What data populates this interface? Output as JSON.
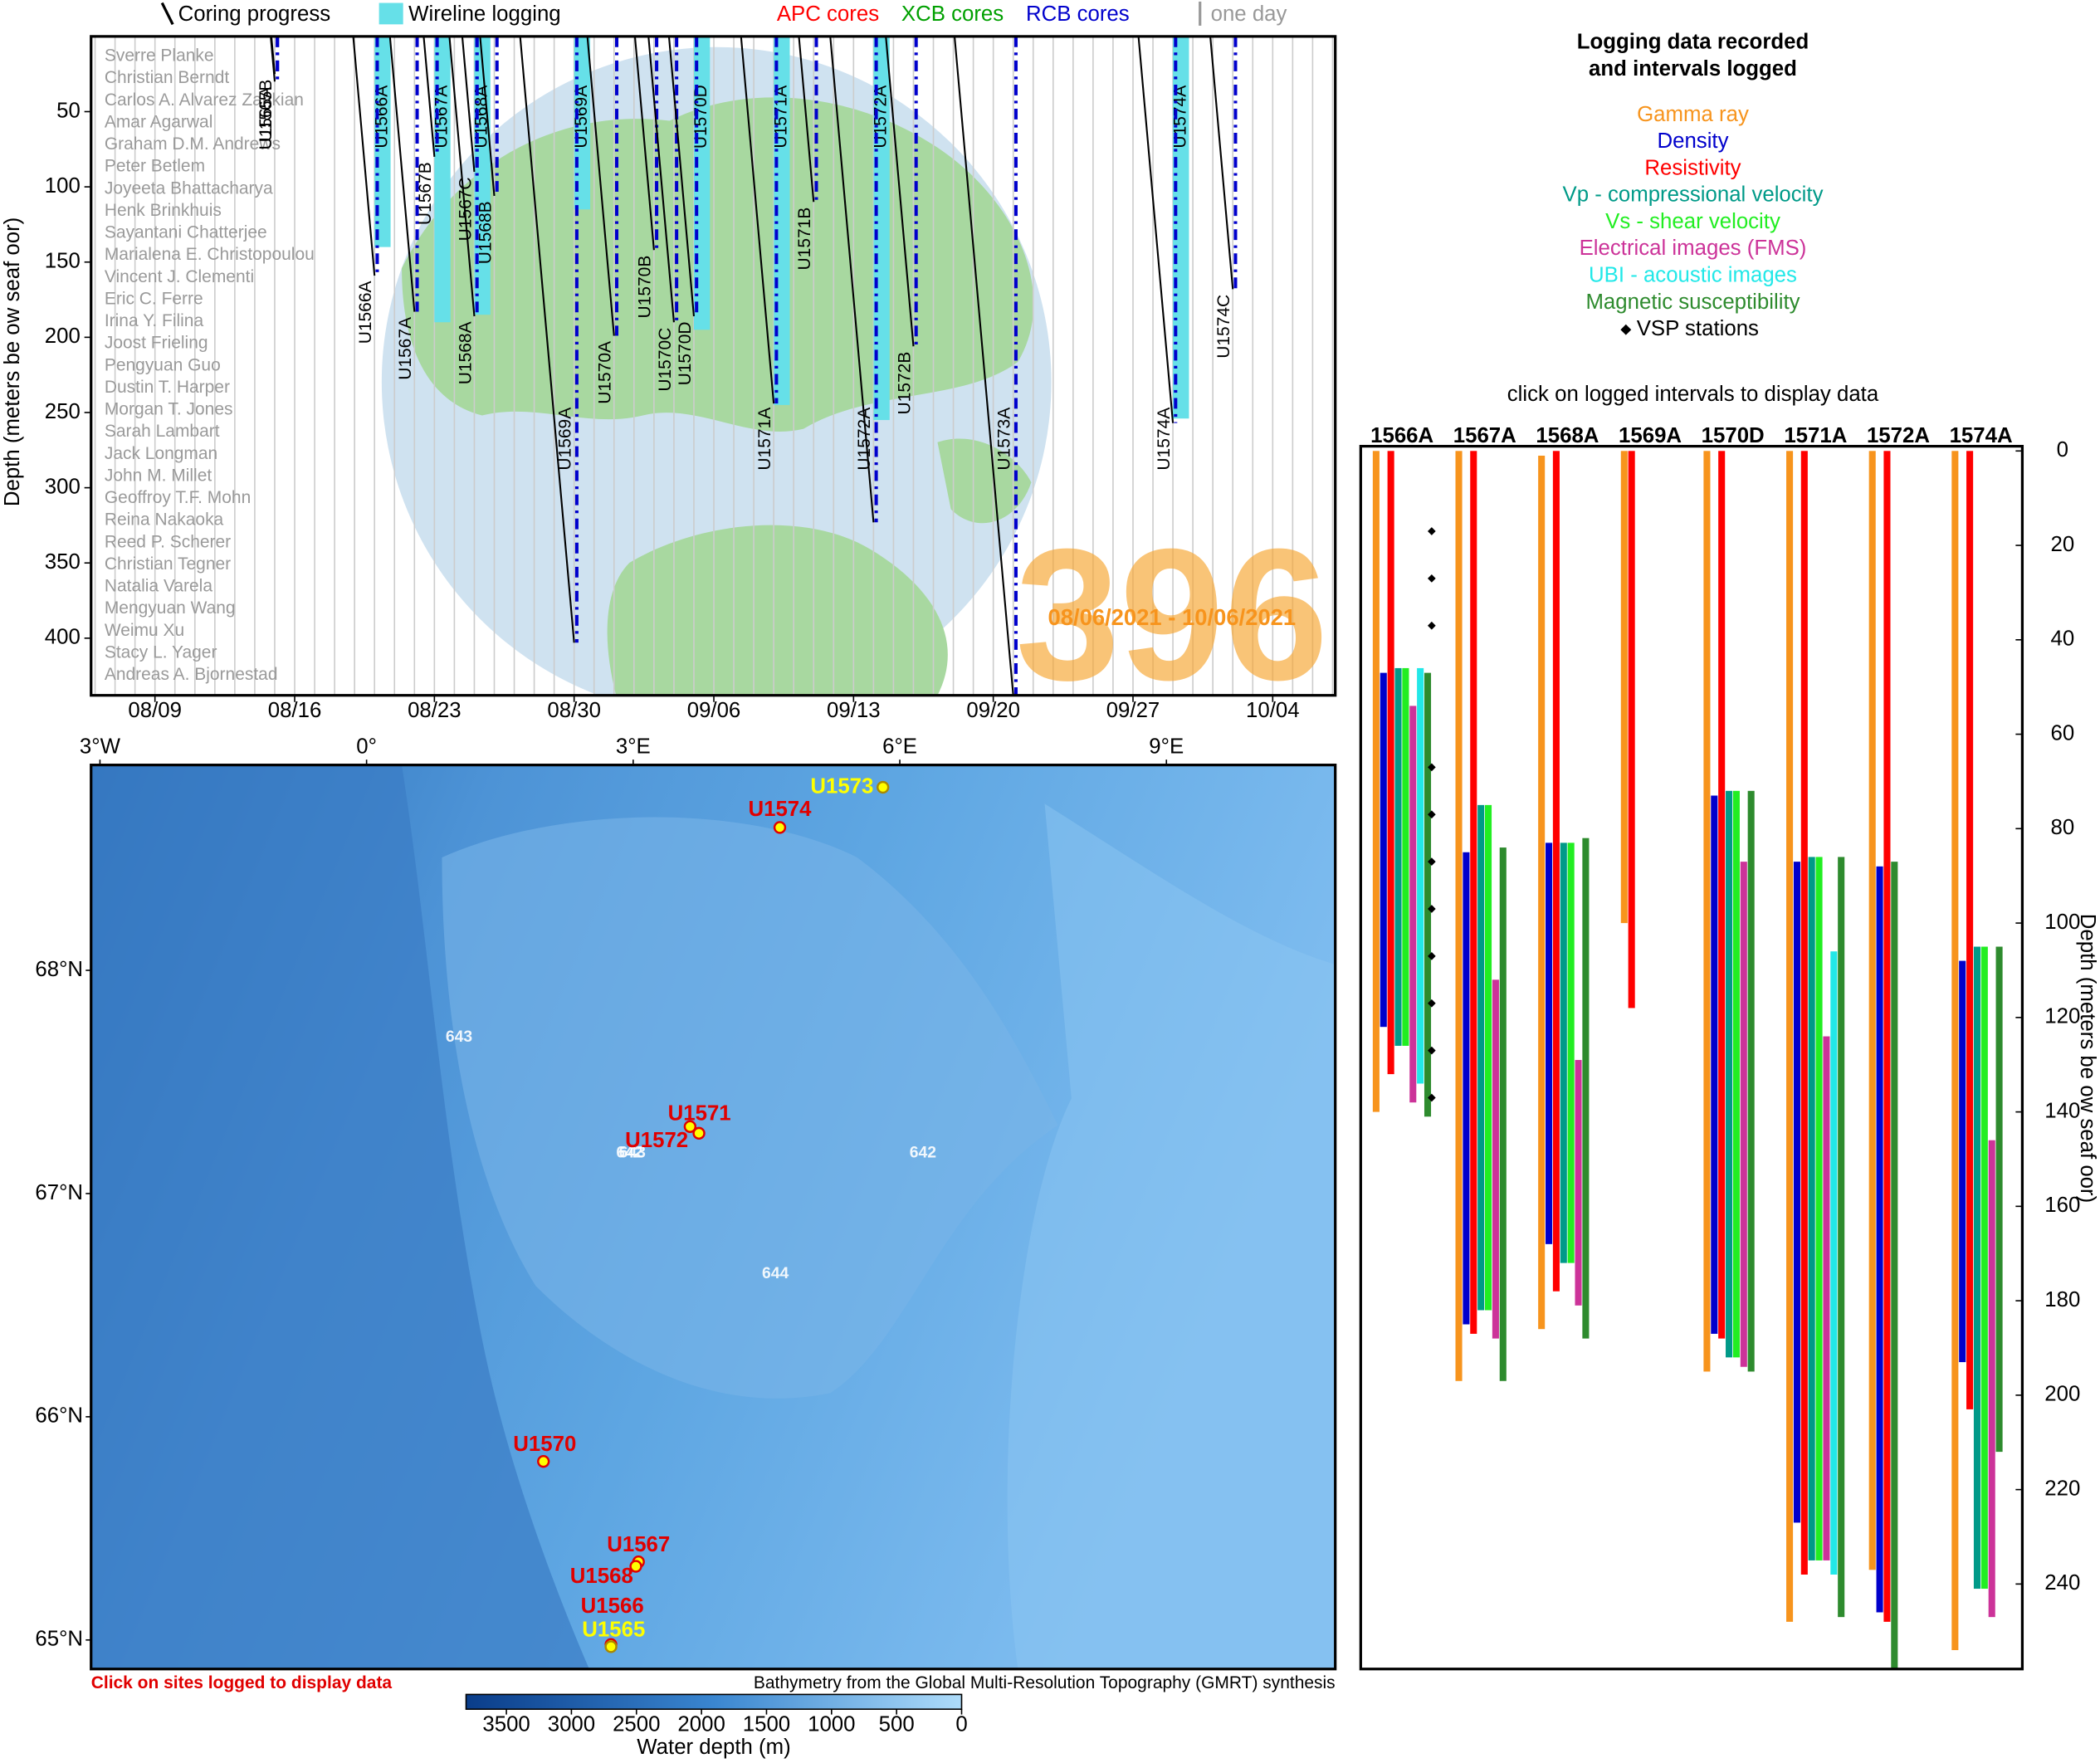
{
  "chart_data": [
    {
      "type": "timeline",
      "legend": [
        "Coring progress",
        "Wireline logging",
        "APC cores",
        "XCB cores",
        "RCB cores",
        "one day"
      ],
      "legend_colors": [
        "#000000",
        "#66e0e8",
        "#ff0000",
        "#00a000",
        "#0000cc",
        "#999999"
      ],
      "ylabel": "Depth (meters be ow seaf oor)",
      "xlim": [
        "08/06",
        "10/07"
      ],
      "xticks": [
        "08/09",
        "08/16",
        "08/23",
        "08/30",
        "09/06",
        "09/13",
        "09/20",
        "09/27",
        "10/04"
      ],
      "ylim": [
        0,
        438
      ],
      "yticks": [
        50,
        100,
        150,
        200,
        250,
        300,
        350,
        400
      ],
      "y_inverted": true,
      "grid": true,
      "holes": [
        {
          "name": "U1565A",
          "date": "08/15",
          "depth": 30
        },
        {
          "name": "U1565B",
          "date": "08/15",
          "depth": 25
        },
        {
          "name": "U1566A",
          "date": "08/20",
          "depth": 159
        },
        {
          "name": "U1567A",
          "date": "08/22",
          "depth": 183
        },
        {
          "name": "U1567B",
          "date": "08/23",
          "depth": 80
        },
        {
          "name": "U1567C",
          "date": "08/25",
          "depth": 90
        },
        {
          "name": "U1568A",
          "date": "08/25",
          "depth": 186
        },
        {
          "name": "U1568B",
          "date": "08/26",
          "depth": 106
        },
        {
          "name": "U1569A",
          "date": "08/30",
          "depth": 403
        },
        {
          "name": "U1570A",
          "date": "09/01",
          "depth": 199
        },
        {
          "name": "U1570B",
          "date": "09/03",
          "depth": 142
        },
        {
          "name": "U1570C",
          "date": "09/04",
          "depth": 190
        },
        {
          "name": "U1570D",
          "date": "09/05",
          "depth": 186
        },
        {
          "name": "U1571A",
          "date": "09/09",
          "depth": 244
        },
        {
          "name": "U1571B",
          "date": "09/11",
          "depth": 110
        },
        {
          "name": "U1572A",
          "date": "09/14",
          "depth": 323
        },
        {
          "name": "U1572B",
          "date": "09/16",
          "depth": 206
        },
        {
          "name": "U1573A",
          "date": "09/21",
          "depth": 438
        },
        {
          "name": "U1574A",
          "date": "09/29",
          "depth": 257
        },
        {
          "name": "U1574C",
          "date": "10/02",
          "depth": 168
        }
      ],
      "logging_color": "#66e0e8",
      "logging": [
        {
          "name": "U1566A",
          "date": "08/20",
          "top": 0,
          "bottom": 140
        },
        {
          "name": "U1567A",
          "date": "08/23",
          "top": 0,
          "bottom": 190
        },
        {
          "name": "U1568A",
          "date": "08/25",
          "top": 0,
          "bottom": 185
        },
        {
          "name": "U1569A",
          "date": "08/30",
          "top": 0,
          "bottom": 115
        },
        {
          "name": "U1570D",
          "date": "09/05",
          "top": 0,
          "bottom": 195
        },
        {
          "name": "U1571A",
          "date": "09/09",
          "top": 0,
          "bottom": 245
        },
        {
          "name": "U1572A",
          "date": "09/14",
          "top": 0,
          "bottom": 255
        },
        {
          "name": "U1574A",
          "date": "09/29",
          "top": 0,
          "bottom": 254
        }
      ],
      "scientists": [
        "Sverre Planke",
        "Christian Berndt",
        "Carlos A. Alvarez Zarikian",
        "Amar Agarwal",
        "Graham D.M. Andrews",
        "Peter Betlem",
        "Joyeeta Bhattacharya",
        "Henk Brinkhuis",
        "Sayantani Chatterjee",
        "Marialena E. Christopoulou",
        "Vincent J. Clementi",
        "Eric C. Ferre",
        "Irina Y. Filina",
        "Joost Frieling",
        "Pengyuan Guo",
        "Dustin T. Harper",
        "Morgan T. Jones",
        "Sarah Lambart",
        "Jack Longman",
        "John M. Millet",
        "Geoffroy T.F. Mohn",
        "Reina Nakaoka",
        "Reed P. Scherer",
        "Christian Tegner",
        "Natalia Varela",
        "Mengyuan Wang",
        "Weimu Xu",
        "Stacy L. Yager",
        "Andreas A. Bjornestad"
      ],
      "expedition": "396",
      "dates": "08/06/2021 - 10/06/2021"
    },
    {
      "type": "map",
      "xlim": [
        -3.1,
        10.9
      ],
      "ylim": [
        64.87,
        68.92
      ],
      "xticks": [
        {
          "value": -3,
          "label": "3°W"
        },
        {
          "value": 0,
          "label": "0°"
        },
        {
          "value": 3,
          "label": "3°E"
        },
        {
          "value": 6,
          "label": "6°E"
        },
        {
          "value": 9,
          "label": "9°E"
        }
      ],
      "yticks": [
        {
          "value": 68,
          "label": "68°N"
        },
        {
          "value": 67,
          "label": "67°N"
        },
        {
          "value": 66,
          "label": "66°N"
        },
        {
          "value": 65,
          "label": "65°N"
        }
      ],
      "sites": [
        {
          "name": "U1573",
          "lon": 5.81,
          "lat": 68.82,
          "color": "#ffff00"
        },
        {
          "name": "U1574",
          "lon": 4.65,
          "lat": 68.64,
          "color": "#e00000"
        },
        {
          "name": "U1571",
          "lon": 3.64,
          "lat": 67.3,
          "color": "#e00000"
        },
        {
          "name": "U1572",
          "lon": 3.74,
          "lat": 67.27,
          "color": "#e00000"
        },
        {
          "name": "U1570",
          "lon": 1.99,
          "lat": 65.8,
          "color": "#e00000"
        },
        {
          "name": "U1567",
          "lon": 3.06,
          "lat": 65.35,
          "color": "#e00000"
        },
        {
          "name": "U1568",
          "lon": 3.03,
          "lat": 65.33,
          "color": "#e00000"
        },
        {
          "name": "U1566",
          "lon": 2.75,
          "lat": 64.98,
          "color": "#e00000"
        },
        {
          "name": "U1565",
          "lon": 2.75,
          "lat": 64.97,
          "color": "#ffff00"
        }
      ],
      "odp_sites": [
        {
          "name": "643",
          "lon": 1.04,
          "lat": 67.7
        },
        {
          "name": "642",
          "lon": 6.26,
          "lat": 67.18
        },
        {
          "name": "644",
          "lon": 4.6,
          "lat": 66.64
        },
        {
          "name": "642",
          "lon": 2.96,
          "lat": 67.18
        },
        {
          "name": "643",
          "lon": 2.99,
          "lat": 67.18
        }
      ],
      "note": "Click on sites logged to display data",
      "credit": "Bathymetry from the Global Multi-Resolution Topography (GMRT) synthesis",
      "colorbar": {
        "label": "Water depth (m)",
        "lim": [
          3810,
          0
        ],
        "ticks": [
          3500,
          3000,
          2500,
          2000,
          1500,
          1000,
          500,
          0
        ]
      }
    },
    {
      "type": "range_bar",
      "title": [
        "Logging data recorded",
        "and intervals logged"
      ],
      "subtitle": "click on logged intervals to display data",
      "categories": [
        "1566A",
        "1567A",
        "1568A",
        "1569A",
        "1570D",
        "1571A",
        "1572A",
        "1574A"
      ],
      "ylim": [
        -1,
        258
      ],
      "yticks": [
        0,
        20,
        40,
        60,
        80,
        100,
        120,
        140,
        160,
        180,
        200,
        220,
        240
      ],
      "y_inverted": true,
      "ylabel": "Depth (meters be ow seaf oor)",
      "series": [
        {
          "name": "Gamma ray",
          "color": "#f7941d",
          "values": [
            [
              0,
              140
            ],
            [
              0,
              197
            ],
            [
              1,
              186
            ],
            [
              0,
              100
            ],
            [
              0,
              195
            ],
            [
              0,
              248
            ],
            [
              0,
              237
            ],
            [
              0,
              254
            ]
          ]
        },
        {
          "name": "Density",
          "color": "#0000cc",
          "values": [
            [
              47,
              122
            ],
            [
              85,
              185
            ],
            [
              83,
              168
            ],
            null,
            [
              73,
              187
            ],
            [
              87,
              227
            ],
            [
              88,
              246
            ],
            [
              108,
              193
            ]
          ]
        },
        {
          "name": "Resistivity",
          "color": "#ff0000",
          "values": [
            [
              0,
              132
            ],
            [
              0,
              187
            ],
            [
              0,
              178
            ],
            [
              0,
              118
            ],
            [
              0,
              188
            ],
            [
              0,
              238
            ],
            [
              0,
              248
            ],
            [
              0,
              203
            ]
          ]
        },
        {
          "name": "Vp - compressional velocity",
          "color": "#009a88",
          "values": [
            [
              46,
              126
            ],
            [
              75,
              182
            ],
            [
              83,
              172
            ],
            null,
            [
              72,
              192
            ],
            [
              86,
              235
            ],
            null,
            [
              105,
              241
            ]
          ]
        },
        {
          "name": "Vs - shear velocity",
          "color": "#22ee22",
          "values": [
            [
              46,
              126
            ],
            [
              75,
              182
            ],
            [
              83,
              172
            ],
            null,
            [
              72,
              192
            ],
            [
              86,
              235
            ],
            null,
            [
              105,
              241
            ]
          ]
        },
        {
          "name": "Electrical images (FMS)",
          "color": "#cc3399",
          "values": [
            [
              54,
              138
            ],
            [
              112,
              188
            ],
            [
              129,
              181
            ],
            null,
            [
              87,
              194
            ],
            [
              124,
              235
            ],
            null,
            [
              146,
              247
            ]
          ]
        },
        {
          "name": "UBI - acoustic images",
          "color": "#22e8e8",
          "values": [
            [
              46,
              134
            ],
            null,
            null,
            null,
            null,
            [
              106,
              238
            ],
            null,
            null
          ]
        },
        {
          "name": "Magnetic susceptibility",
          "color": "#2e8b2e",
          "values": [
            [
              47,
              141
            ],
            [
              84,
              197
            ],
            [
              82,
              188
            ],
            null,
            [
              72,
              195
            ],
            [
              86,
              247
            ],
            [
              87,
              258
            ],
            [
              105,
              212
            ]
          ]
        }
      ],
      "vsp": {
        "name": "VSP stations",
        "values": [
          [
            17,
            27,
            37,
            67,
            77,
            87,
            97,
            107,
            117,
            127,
            137
          ],
          [],
          [],
          [],
          [],
          [],
          [],
          []
        ]
      }
    }
  ]
}
